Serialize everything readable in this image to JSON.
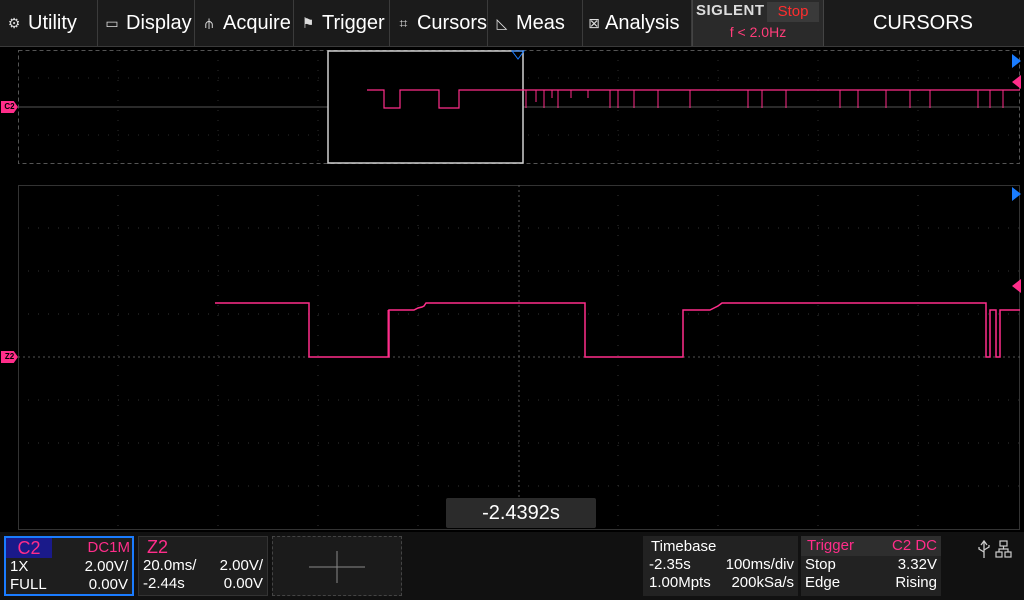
{
  "menu": {
    "items": [
      {
        "label": "Utility",
        "icon": "gear-icon",
        "glyph": "⚙"
      },
      {
        "label": "Display",
        "icon": "monitor-icon",
        "glyph": "▭"
      },
      {
        "label": "Acquire",
        "icon": "acquire-icon",
        "glyph": "⫛"
      },
      {
        "label": "Trigger",
        "icon": "flag-icon",
        "glyph": "⚑"
      },
      {
        "label": "Cursors",
        "icon": "cursor-grid-icon",
        "glyph": "⌗"
      },
      {
        "label": "Meas",
        "icon": "meas-icon",
        "glyph": "◺"
      },
      {
        "label": "Analysis",
        "icon": "analysis-icon",
        "glyph": "⊠"
      }
    ],
    "mode": "CURSORS"
  },
  "brand": {
    "logo": "SIGLENT",
    "run_state": "Stop",
    "trigger_freq": "f < 2.0Hz"
  },
  "channel_markers": {
    "overview": "C2",
    "zoom": "Z2"
  },
  "cursor_readout": "-2.4392s",
  "channel_box": {
    "name": "C2",
    "coupling": "DC1M",
    "probe": "1X",
    "scale": "2.00V/",
    "bandwidth": "FULL",
    "offset": "0.00V"
  },
  "zoom_box": {
    "name": "Z2",
    "timebase": "20.0ms/",
    "scale": "2.00V/",
    "delay": "-2.44s",
    "offset": "0.00V"
  },
  "timebase": {
    "title": "Timebase",
    "delay": "-2.35s",
    "scale": "100ms/div",
    "memory": "1.00Mpts",
    "sample_rate": "200kSa/s"
  },
  "trigger": {
    "title": "Trigger",
    "source": "C2 DC",
    "mode": "Stop",
    "level": "3.32V",
    "type": "Edge",
    "slope": "Rising"
  },
  "status_icons": [
    "usb-icon",
    "network-icon"
  ],
  "colors": {
    "channel": "#ff2d8a",
    "accent_blue": "#1a7cff",
    "run_stop": "#ff2d2d",
    "grid": "#3a3a3a"
  }
}
